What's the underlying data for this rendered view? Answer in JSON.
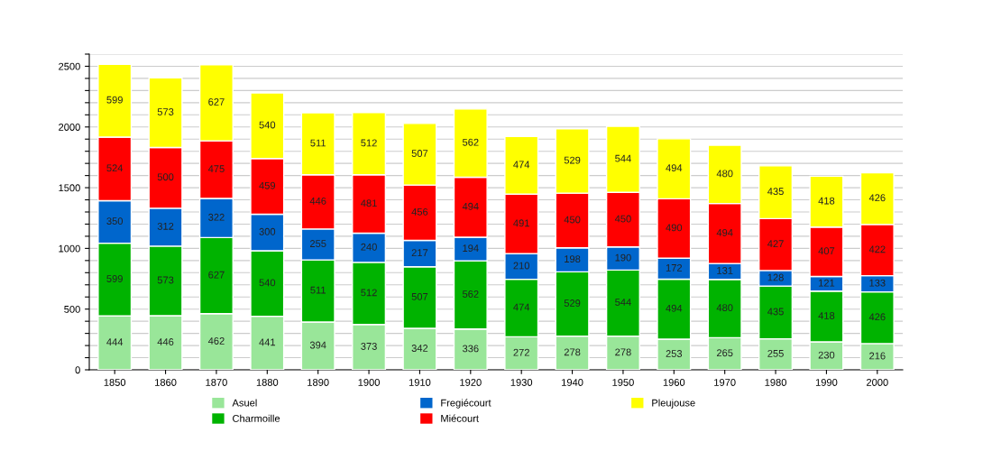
{
  "chart_data": {
    "type": "bar",
    "stacked": true,
    "data_labels": true,
    "grid": "y",
    "legend": "bottom",
    "categories": [
      "1850",
      "1860",
      "1870",
      "1880",
      "1890",
      "1900",
      "1910",
      "1920",
      "1930",
      "1940",
      "1950",
      "1960",
      "1970",
      "1980",
      "1990",
      "2000"
    ],
    "series": [
      {
        "name": "Asuel",
        "color": "#99e699",
        "values": [
          444,
          446,
          462,
          441,
          394,
          373,
          342,
          336,
          272,
          278,
          278,
          253,
          265,
          255,
          230,
          216
        ]
      },
      {
        "name": "Charmoille",
        "color": "#00b300",
        "values": [
          599,
          573,
          627,
          540,
          511,
          512,
          507,
          562,
          474,
          529,
          544,
          494,
          480,
          435,
          418,
          426
        ]
      },
      {
        "name": "Fregiécourt",
        "color": "#0066cc",
        "values": [
          350,
          312,
          322,
          300,
          255,
          240,
          217,
          194,
          210,
          198,
          190,
          172,
          131,
          128,
          121,
          133
        ]
      },
      {
        "name": "Miécourt",
        "color": "#ff0000",
        "values": [
          524,
          500,
          475,
          459,
          446,
          481,
          456,
          494,
          491,
          450,
          450,
          490,
          494,
          427,
          407,
          422
        ]
      },
      {
        "name": "Pleujouse",
        "color": "#ffff00",
        "values": [
          599,
          573,
          627,
          540,
          511,
          512,
          507,
          562,
          474,
          529,
          544,
          494,
          480,
          435,
          418,
          426
        ]
      }
    ],
    "ylim": [
      0,
      2600
    ],
    "yticks": [
      0,
      {
        "value": 100,
        "label": null
      },
      {
        "value": 200,
        "label": null
      },
      {
        "value": 300,
        "label": null
      },
      {
        "value": 400,
        "label": null
      },
      500,
      {
        "value": 600,
        "label": null
      },
      {
        "value": 700,
        "label": null
      },
      {
        "value": 800,
        "label": null
      },
      {
        "value": 900,
        "label": null
      },
      1000,
      {
        "value": 1100,
        "label": null
      },
      {
        "value": 1200,
        "label": null
      },
      {
        "value": 1300,
        "label": null
      },
      {
        "value": 1400,
        "label": null
      },
      1500,
      {
        "value": 1600,
        "label": null
      },
      {
        "value": 1700,
        "label": null
      },
      {
        "value": 1800,
        "label": null
      },
      {
        "value": 1900,
        "label": null
      },
      2000,
      {
        "value": 2100,
        "label": null
      },
      {
        "value": 2200,
        "label": null
      },
      {
        "value": 2300,
        "label": null
      },
      {
        "value": 2400,
        "label": null
      },
      2500,
      {
        "value": 2600,
        "label": null
      }
    ]
  }
}
